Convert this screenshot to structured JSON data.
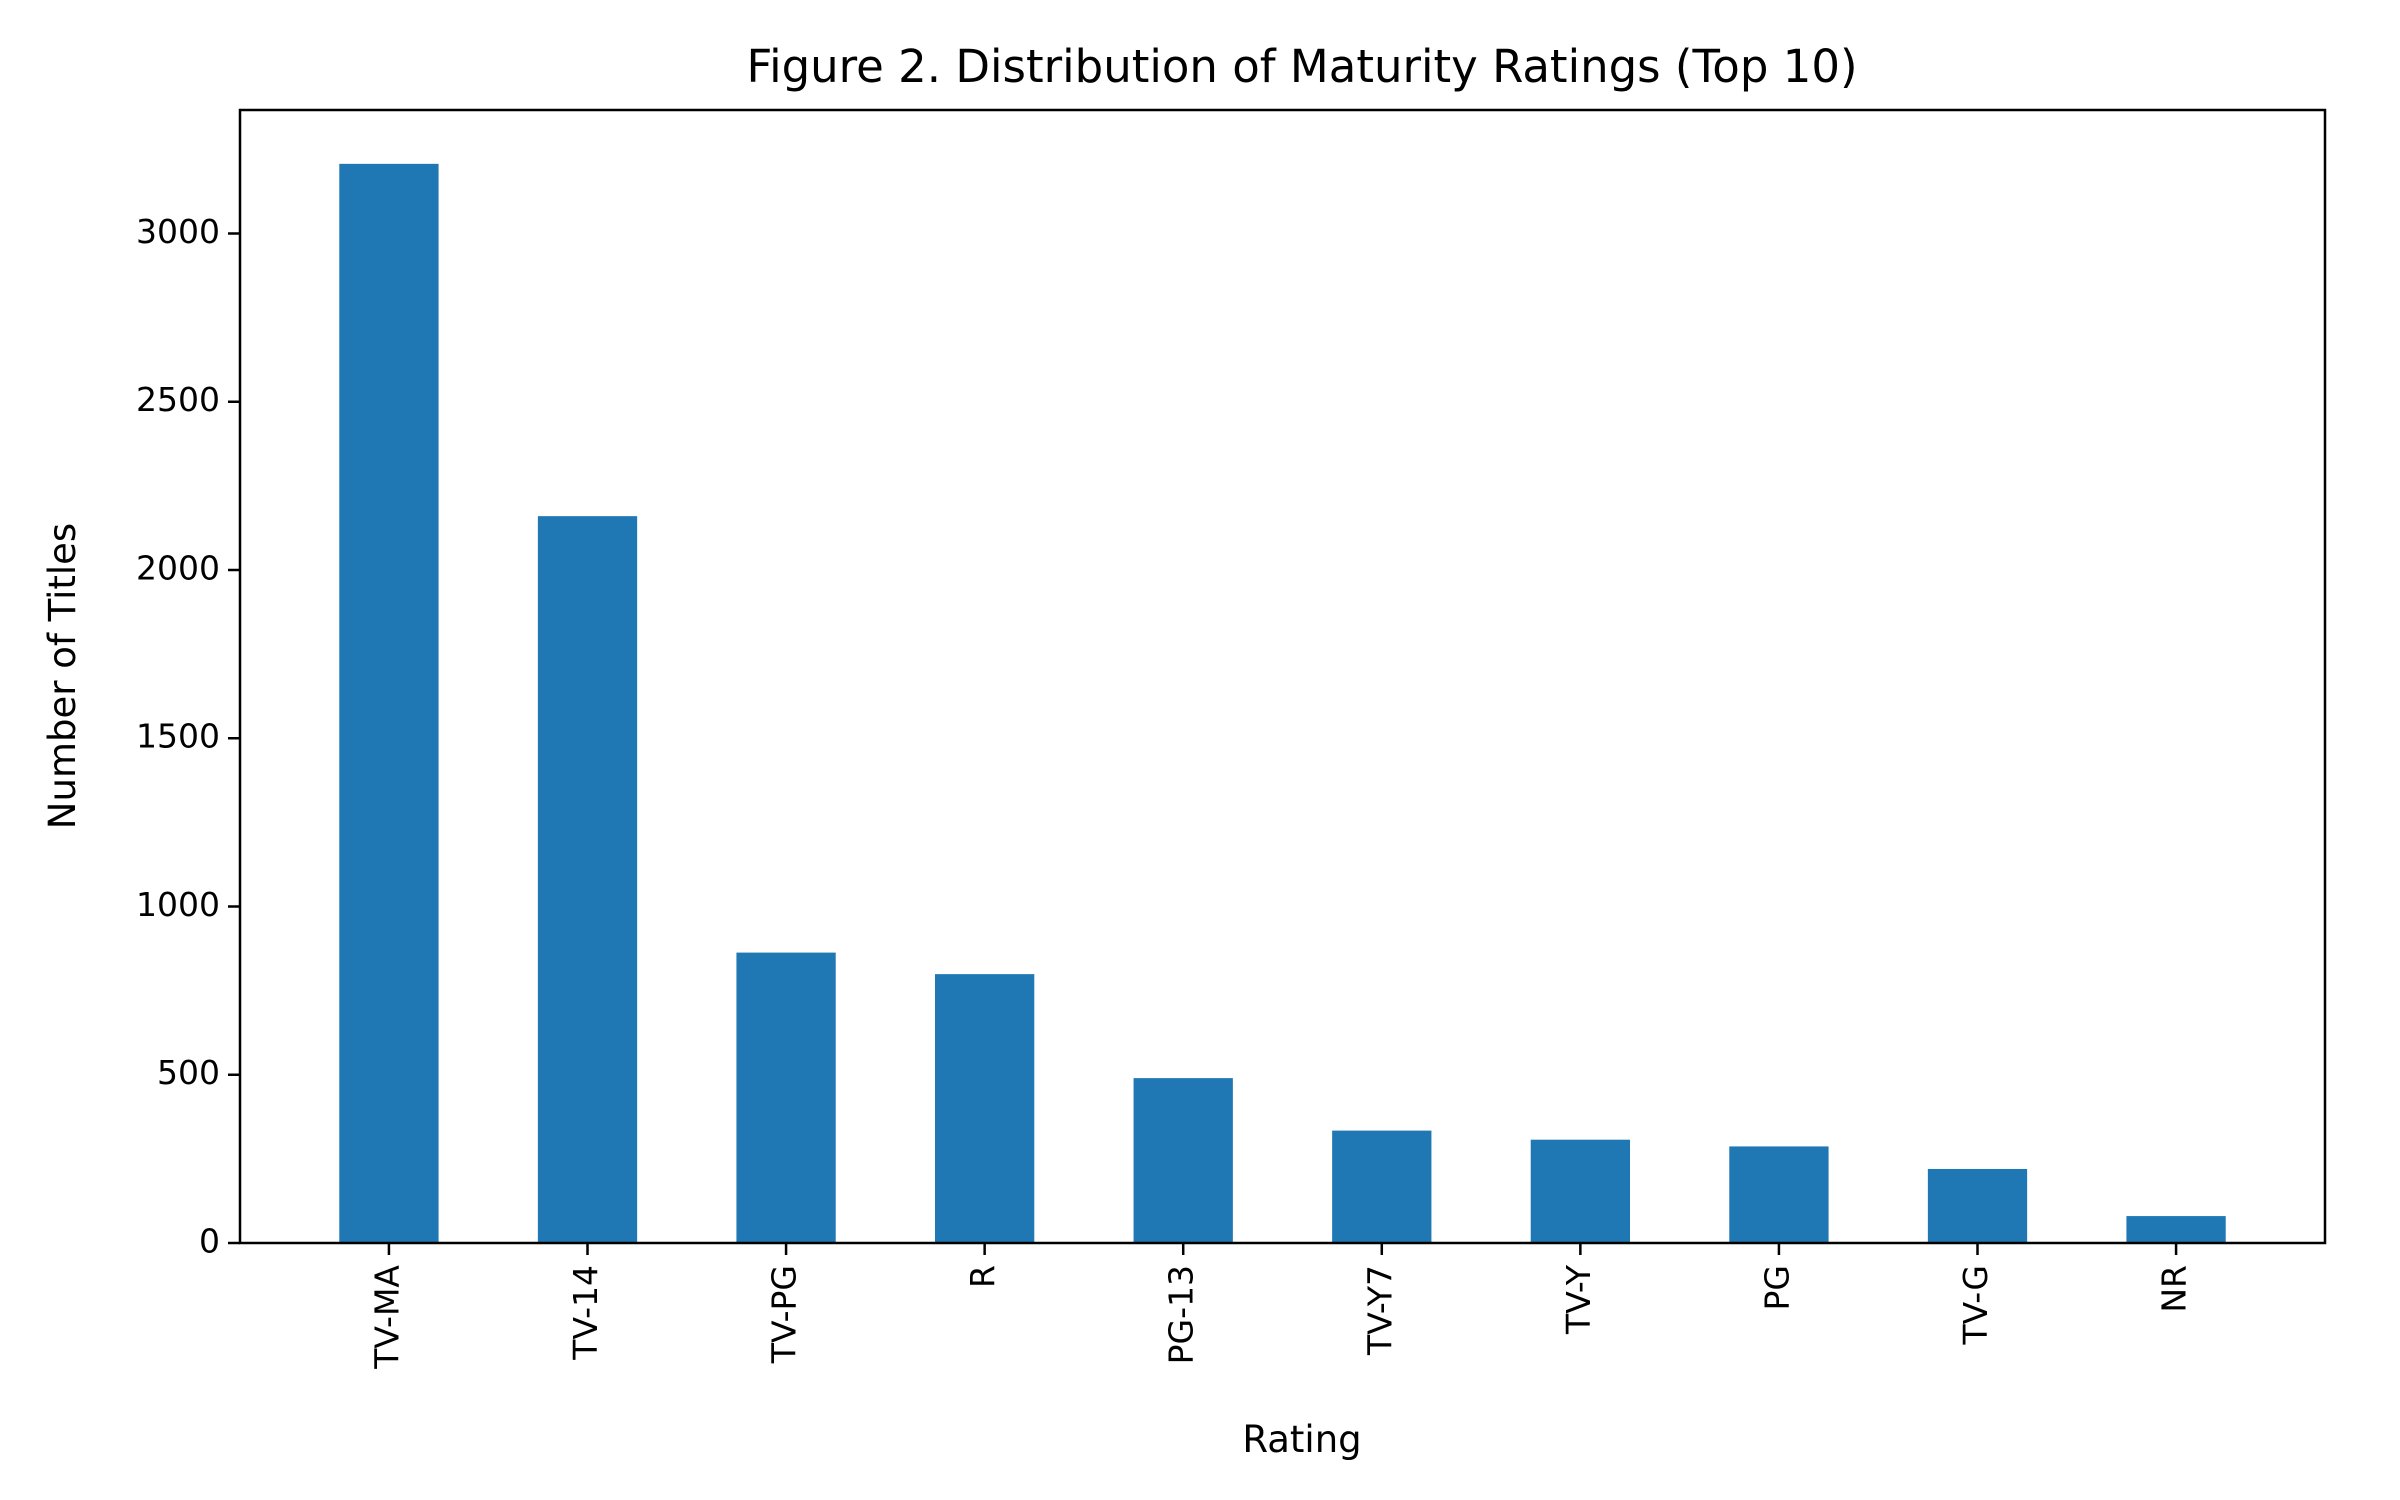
{
  "chart_data": {
    "type": "bar",
    "title": "Figure 2. Distribution of Maturity Ratings (Top 10)",
    "xlabel": "Rating",
    "ylabel": "Number of Titles",
    "categories": [
      "TV-MA",
      "TV-14",
      "TV-PG",
      "R",
      "PG-13",
      "TV-Y7",
      "TV-Y",
      "PG",
      "TV-G",
      "NR"
    ],
    "values": [
      3207,
      2160,
      863,
      799,
      490,
      334,
      307,
      287,
      220,
      80
    ],
    "ylim": [
      0,
      3367
    ],
    "yticks": [
      0,
      500,
      1000,
      1500,
      2000,
      2500,
      3000
    ],
    "bar_color": "#1f77b4",
    "grid": false,
    "legend": "none"
  }
}
